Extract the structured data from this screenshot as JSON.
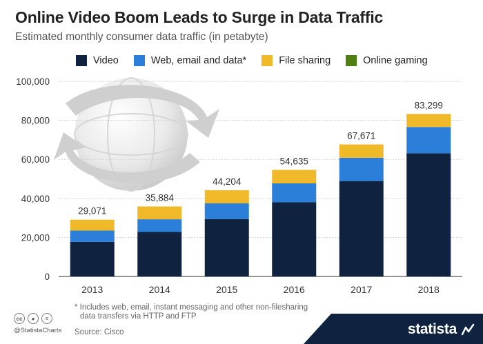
{
  "chart_data": {
    "type": "bar",
    "stacked": true,
    "title": "Online Video Boom Leads to Surge in Data Traffic",
    "subtitle": "Estimated monthly consumer data traffic (in petabyte)",
    "categories": [
      "2013",
      "2014",
      "2015",
      "2016",
      "2017",
      "2018"
    ],
    "series": [
      {
        "name": "Video",
        "color": "#0f2340",
        "values": [
          17700,
          22800,
          29400,
          38000,
          48900,
          63100
        ]
      },
      {
        "name": "Web, email and data*",
        "color": "#2b7fd9",
        "values": [
          5800,
          6500,
          8100,
          9700,
          11900,
          13500
        ]
      },
      {
        "name": "File sharing",
        "color": "#f0b929",
        "values": [
          5571,
          6584,
          6704,
          6935,
          6871,
          6699
        ]
      },
      {
        "name": "Online gaming",
        "color": "#4f7f12",
        "values": [
          0,
          0,
          0,
          0,
          0,
          0
        ]
      }
    ],
    "totals": [
      "29,071",
      "35,884",
      "44,204",
      "54,635",
      "67,671",
      "83,299"
    ],
    "ylim": [
      0,
      100000
    ],
    "yticks": [
      0,
      20000,
      40000,
      60000,
      80000,
      100000
    ],
    "ytick_labels": [
      "0",
      "20,000",
      "40,000",
      "60,000",
      "80,000",
      "100,000"
    ],
    "grid": true,
    "legend_position": "top"
  },
  "footnote_line1": "* Includes web, email, instant messaging and other non-filesharing",
  "footnote_line2": "data transfers via HTTP and FTP",
  "source": "Source: Cisco",
  "handle": "@StatistaCharts",
  "brand": "statista",
  "brand_color": "#0f2340",
  "license_icons": [
    "cc-icon",
    "attribution-icon",
    "no-derivatives-icon"
  ]
}
